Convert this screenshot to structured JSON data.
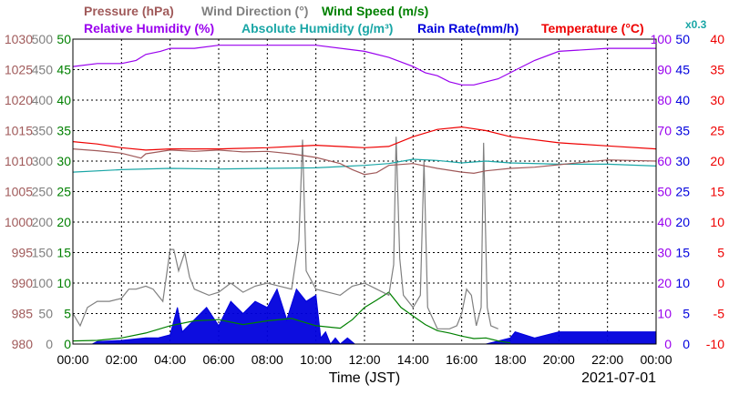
{
  "chart_data": {
    "type": "line",
    "date": "2021-07-01",
    "xlabel": "Time (JST)",
    "x_ticks": [
      "00:00",
      "02:00",
      "04:00",
      "06:00",
      "08:00",
      "10:00",
      "12:00",
      "14:00",
      "16:00",
      "18:00",
      "20:00",
      "22:00",
      "00:00"
    ],
    "x_range_hours": [
      0,
      24
    ],
    "grid": true,
    "legend_placement": "top",
    "scale_note": "x0.3",
    "axes": [
      {
        "id": "pressure",
        "label": "Pressure (hPa)",
        "color": "#a05a5a",
        "side": "left",
        "range": [
          980,
          1030
        ],
        "ticks": [
          "1030",
          "1025",
          "1020",
          "1015",
          "1010",
          "1005",
          "1000",
          "995",
          "990",
          "985",
          "980"
        ]
      },
      {
        "id": "wind_dir",
        "label": "Wind Direction (°)",
        "color": "#808080",
        "side": "left",
        "range": [
          0,
          500
        ],
        "ticks": [
          "500",
          "450",
          "400",
          "350",
          "300",
          "250",
          "200",
          "150",
          "100",
          "50",
          "0"
        ]
      },
      {
        "id": "wind_speed",
        "label": "Wind Speed (m/s)",
        "color": "#008000",
        "side": "left",
        "range": [
          0,
          50
        ],
        "ticks": [
          "50",
          "45",
          "40",
          "35",
          "30",
          "25",
          "20",
          "15",
          "10",
          "5",
          "0"
        ]
      },
      {
        "id": "rh",
        "label": "Relative Humidity (%)",
        "color": "#9900ee",
        "side": "right",
        "range": [
          0,
          100
        ],
        "ticks": [
          "100",
          "90",
          "80",
          "70",
          "60",
          "50",
          "40",
          "30",
          "20",
          "10",
          "0"
        ]
      },
      {
        "id": "abs_hum",
        "label": "Absolute Humidity (g/m³)",
        "color": "#1aa6a6",
        "side": "right",
        "range": [
          0,
          50
        ],
        "ticks": [
          "50",
          "45",
          "40",
          "35",
          "30",
          "25",
          "20",
          "15",
          "10",
          "5",
          "0"
        ]
      },
      {
        "id": "rain",
        "label": "Rain Rate(mm/h)",
        "color": "#0000dd",
        "side": "right",
        "range": [
          0,
          50
        ],
        "ticks": [
          "50",
          "45",
          "40",
          "35",
          "30",
          "25",
          "20",
          "15",
          "10",
          "5",
          "0"
        ]
      },
      {
        "id": "temp",
        "label": "Temperature (°C)",
        "color": "#ee0000",
        "side": "right",
        "range": [
          -10,
          40
        ],
        "ticks": [
          "40",
          "35",
          "30",
          "25",
          "20",
          "15",
          "10",
          "5",
          "0",
          "-5",
          "-10"
        ]
      }
    ],
    "series": [
      {
        "name": "Relative Humidity (%)",
        "axis": "rh",
        "color": "#9900ee",
        "x": [
          0,
          1,
          2,
          2.6,
          3,
          3.6,
          4,
          5,
          6,
          8,
          10,
          12,
          13,
          14,
          14.5,
          15,
          15.5,
          16,
          16.5,
          17,
          17.5,
          18,
          18.5,
          19,
          20,
          22,
          24
        ],
        "y": [
          91,
          92,
          92,
          93,
          95,
          96,
          97,
          97,
          98,
          98,
          98,
          96,
          94,
          91,
          89,
          88,
          86,
          85,
          85,
          86,
          87,
          89,
          91,
          93,
          96,
          97,
          97
        ]
      },
      {
        "name": "Temperature (°C)",
        "axis": "temp",
        "color": "#ee0000",
        "x": [
          0,
          1,
          2,
          3,
          4,
          6,
          8,
          10,
          12,
          13,
          14,
          15,
          16,
          17,
          18,
          20,
          22,
          24
        ],
        "y": [
          23.2,
          22.8,
          22.2,
          21.8,
          22.0,
          22.0,
          22.2,
          22.6,
          22.2,
          22.4,
          24.0,
          25.2,
          25.6,
          25.0,
          24.0,
          23.0,
          22.5,
          22.0
        ]
      },
      {
        "name": "Pressure (hPa)",
        "axis": "pressure",
        "color": "#a05a5a",
        "x": [
          0,
          1,
          2,
          2.8,
          3,
          4,
          5,
          6,
          7,
          8,
          9,
          10,
          11,
          11.5,
          12,
          12.5,
          13,
          14,
          15,
          16,
          16.5,
          17,
          18,
          19,
          20,
          21,
          22,
          23,
          24
        ],
        "y": [
          1012,
          1011.7,
          1011.3,
          1010.5,
          1011.2,
          1011.8,
          1011.6,
          1011.8,
          1011.5,
          1011.6,
          1011.2,
          1010.6,
          1009.6,
          1008.6,
          1007.8,
          1008.1,
          1009.3,
          1009.6,
          1008.8,
          1008.2,
          1008.0,
          1008.4,
          1008.8,
          1009.0,
          1009.4,
          1009.8,
          1010.2,
          1010.1,
          1010.0
        ]
      },
      {
        "name": "Absolute Humidity (g/m³)",
        "axis": "abs_hum",
        "color": "#1aa6a6",
        "x": [
          0,
          2,
          4,
          6,
          8,
          10,
          12,
          13,
          14,
          15,
          16,
          17,
          18,
          20,
          22,
          24
        ],
        "y": [
          28.2,
          28.6,
          28.8,
          28.7,
          28.8,
          28.9,
          29.3,
          29.6,
          30.3,
          30.1,
          29.7,
          30.0,
          29.7,
          29.5,
          29.5,
          29.2
        ]
      },
      {
        "name": "Wind Direction (°)",
        "axis": "wind_dir",
        "color": "#808080",
        "x": [
          0,
          0.3,
          0.6,
          1,
          1.5,
          2,
          2.3,
          2.6,
          3,
          3.3,
          3.7,
          4,
          4.15,
          4.35,
          4.6,
          4.8,
          5,
          5.3,
          5.6,
          6,
          6.5,
          7,
          7.5,
          8,
          8.5,
          9,
          9.3,
          9.45,
          9.6,
          10,
          10.5,
          11,
          11.5,
          12,
          12.5,
          13,
          13.2,
          13.3,
          13.45,
          13.6,
          14,
          14.3,
          14.45,
          14.6,
          15,
          15.5,
          15.8,
          16,
          16.2,
          16.4,
          16.6,
          16.8,
          16.9,
          17.05,
          17.2,
          17.5
        ],
        "y": [
          50,
          30,
          60,
          70,
          70,
          75,
          90,
          90,
          95,
          90,
          70,
          155,
          155,
          120,
          150,
          110,
          90,
          85,
          80,
          85,
          100,
          85,
          95,
          100,
          95,
          90,
          170,
          335,
          120,
          90,
          85,
          80,
          95,
          100,
          90,
          80,
          130,
          340,
          140,
          80,
          60,
          80,
          300,
          60,
          25,
          25,
          30,
          50,
          90,
          80,
          30,
          60,
          330,
          60,
          30,
          25
        ]
      },
      {
        "name": "Wind Speed (m/s)",
        "axis": "wind_speed",
        "color": "#008000",
        "x": [
          0,
          1,
          2,
          3,
          4,
          5,
          6,
          7,
          8,
          9,
          10,
          11,
          11.5,
          12,
          12.5,
          13,
          13.5,
          14,
          14.5,
          15,
          15.5,
          16,
          16.5,
          17,
          17.5,
          18
        ],
        "y": [
          0.5,
          0.6,
          1.0,
          1.8,
          3.0,
          3.8,
          4.0,
          3.2,
          3.8,
          4.2,
          3.0,
          2.6,
          4.0,
          6.0,
          7.2,
          8.5,
          6.0,
          4.6,
          3.2,
          2.2,
          1.8,
          1.3,
          0.9,
          1.0,
          0.5,
          0.2
        ]
      },
      {
        "name": "Rain Rate(mm/h)",
        "axis": "rain",
        "color": "#0000dd",
        "x": [
          0,
          0.8,
          1,
          2,
          3,
          3.5,
          4,
          4.3,
          4.5,
          5,
          5.5,
          6,
          6.5,
          7,
          7.5,
          8,
          8.4,
          8.8,
          9.2,
          9.6,
          10,
          10.2,
          10.4,
          10.6,
          10.8,
          11,
          11.3,
          11.6,
          12,
          12.6,
          13,
          14,
          16,
          17,
          18,
          18.2,
          19,
          20,
          21,
          22,
          23,
          24
        ],
        "y": [
          0,
          0,
          0.4,
          0.6,
          1,
          1,
          1.5,
          6,
          2,
          4,
          6,
          3,
          7,
          5,
          7,
          6,
          9,
          4,
          9,
          7,
          8,
          1,
          2,
          0,
          1,
          0,
          1,
          0,
          0,
          0,
          0,
          0,
          0,
          0,
          1,
          2,
          1,
          2,
          2,
          2,
          2,
          2
        ]
      }
    ]
  }
}
